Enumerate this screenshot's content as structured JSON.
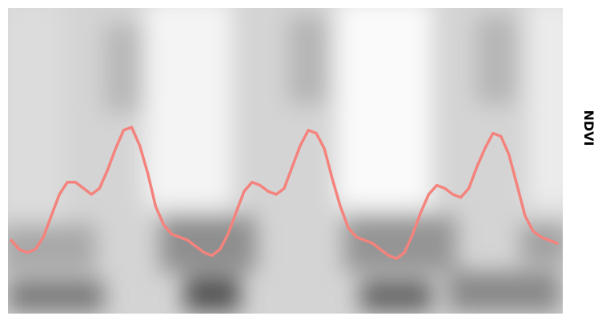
{
  "chart_data": {
    "type": "line",
    "y_label": "NDVI",
    "color": "#f4837d",
    "ylim": [
      0,
      1
    ],
    "values": [
      0.24,
      0.21,
      0.2,
      0.21,
      0.25,
      0.32,
      0.39,
      0.43,
      0.43,
      0.41,
      0.39,
      0.41,
      0.47,
      0.54,
      0.6,
      0.61,
      0.55,
      0.46,
      0.35,
      0.29,
      0.26,
      0.25,
      0.24,
      0.22,
      0.2,
      0.19,
      0.21,
      0.26,
      0.33,
      0.4,
      0.43,
      0.42,
      0.4,
      0.39,
      0.41,
      0.48,
      0.55,
      0.6,
      0.59,
      0.54,
      0.44,
      0.35,
      0.28,
      0.25,
      0.24,
      0.23,
      0.21,
      0.19,
      0.18,
      0.2,
      0.26,
      0.33,
      0.39,
      0.42,
      0.41,
      0.39,
      0.38,
      0.41,
      0.48,
      0.54,
      0.59,
      0.58,
      0.52,
      0.42,
      0.32,
      0.27,
      0.25,
      0.24,
      0.23
    ]
  }
}
